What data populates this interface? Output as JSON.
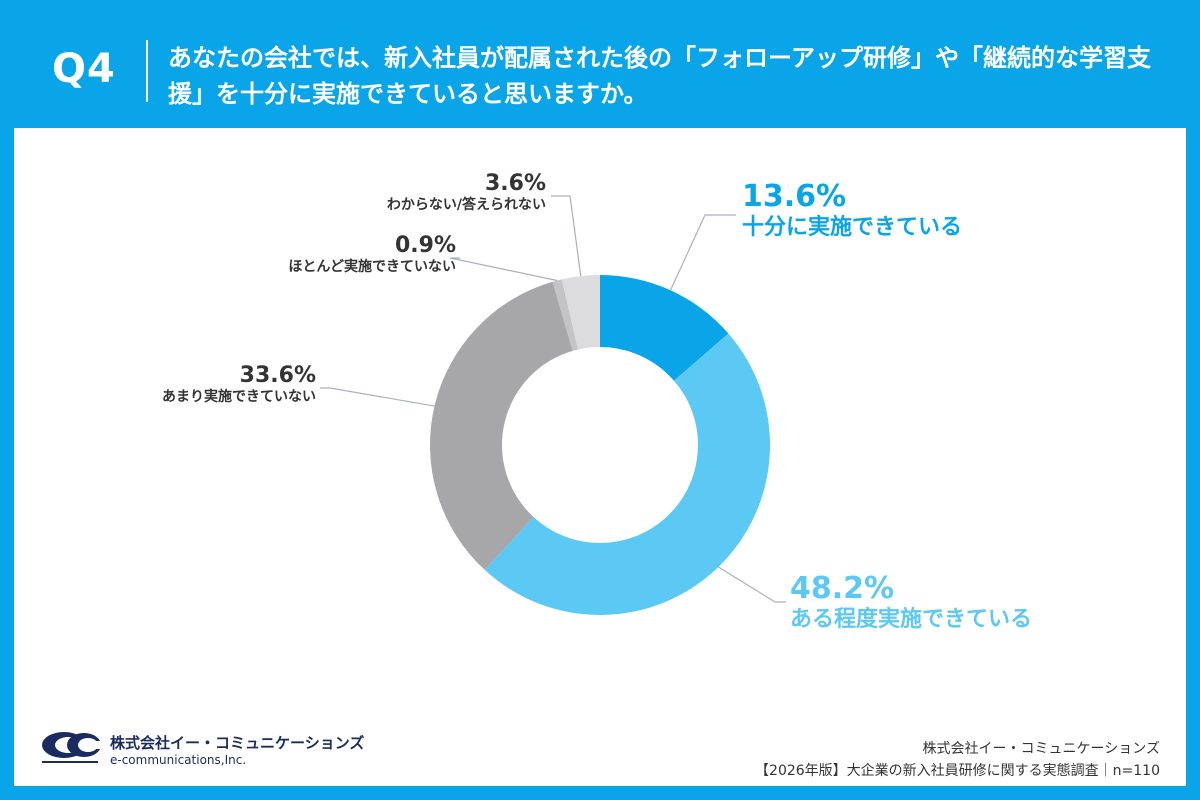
{
  "header": {
    "q_label": "Q4",
    "question": "あなたの会社では、新入社員が配属された後の「フォローアップ研修」や「継続的な学習支援」を十分に実施できていると思いますか。"
  },
  "chart_data": {
    "type": "pie",
    "variant": "donut",
    "title": "あなたの会社では、新入社員が配属された後の「フォローアップ研修」や「継続的な学習支援」を十分に実施できていると思いますか。",
    "unit": "%",
    "slices": [
      {
        "label": "十分に実施できている",
        "value": 13.6,
        "pct_label": "13.6%",
        "color": "#0aa4e8"
      },
      {
        "label": "ある程度実施できている",
        "value": 48.2,
        "pct_label": "48.2%",
        "color": "#5cc8f4"
      },
      {
        "label": "あまり実施できていない",
        "value": 33.6,
        "pct_label": "33.6%",
        "color": "#a7a7aa"
      },
      {
        "label": "ほとんど実施できていない",
        "value": 0.9,
        "pct_label": "0.9%",
        "color": "#c4c4c7"
      },
      {
        "label": "わからない/答えられない",
        "value": 3.6,
        "pct_label": "3.6%",
        "color": "#dcdcde"
      }
    ]
  },
  "colors": {
    "accent": "#0aa4e8",
    "light_accent": "#5cc8f4",
    "leader_line": "#aab0bb",
    "logo": "#1a2b5f"
  },
  "logo": {
    "company_jp": "株式会社イー・コミュニケーションズ",
    "company_en": "e-communications,Inc."
  },
  "footer": {
    "company": "株式会社イー・コミュニケーションズ",
    "source": "【2026年版】大企業の新入社員研修に関する実態調査｜n=110"
  }
}
